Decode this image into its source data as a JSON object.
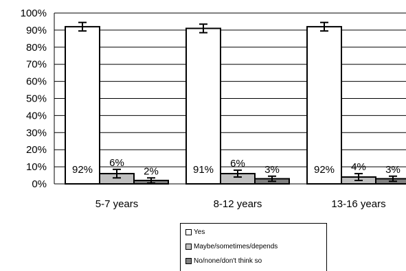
{
  "chart_data": {
    "type": "bar",
    "categories": [
      "5-7 years",
      "8-12 years",
      "13-16 years"
    ],
    "series": [
      {
        "name": "Yes",
        "values": [
          92,
          91,
          92
        ],
        "labels": [
          "92%",
          "91%",
          "92%"
        ],
        "error": [
          2.5,
          2.5,
          2.5
        ],
        "color": "#ffffff"
      },
      {
        "name": "Maybe/sometimes/depends",
        "values": [
          6,
          6,
          4
        ],
        "labels": [
          "6%",
          "6%",
          "4%"
        ],
        "error": [
          2.5,
          2,
          2
        ],
        "color": "#c0c0c0"
      },
      {
        "name": "No/none/don't think so",
        "values": [
          2,
          3,
          3
        ],
        "labels": [
          "2%",
          "3%",
          "3%"
        ],
        "error": [
          1.5,
          1.5,
          1.5
        ],
        "color": "#808080"
      }
    ],
    "yticks": [
      "0%",
      "10%",
      "20%",
      "30%",
      "40%",
      "50%",
      "60%",
      "70%",
      "80%",
      "90%",
      "100%"
    ],
    "ylim": [
      0,
      100
    ],
    "grid": true,
    "legend_position": "bottom"
  }
}
